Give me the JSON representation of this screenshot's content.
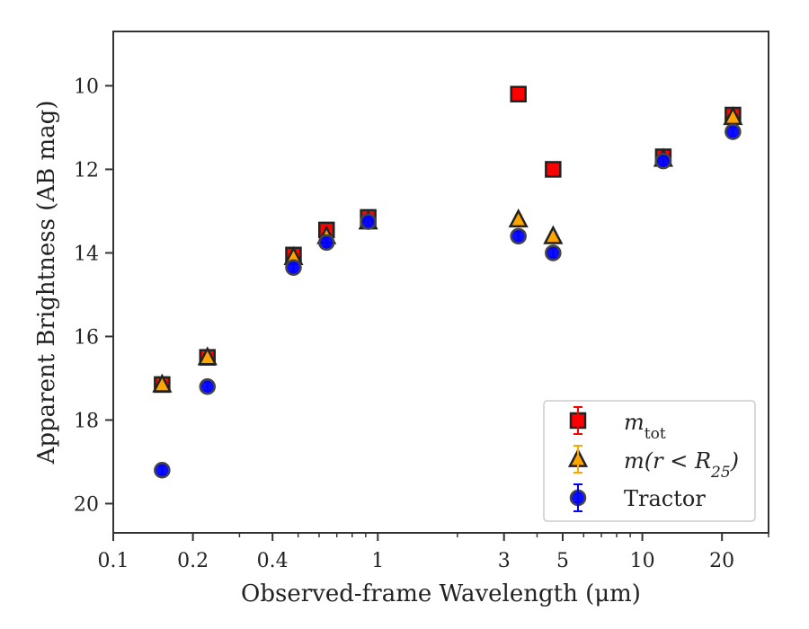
{
  "chart_data": {
    "type": "scatter",
    "xlabel": "Observed-frame Wavelength (μm)",
    "ylabel": "Apparent Brightness (AB mag)",
    "x_scale": "log",
    "xlim": [
      0.1,
      30
    ],
    "ylim": [
      20.7,
      8.7
    ],
    "y_inverted": true,
    "x_ticks": [
      0.1,
      0.2,
      0.4,
      1,
      3,
      5,
      10,
      20
    ],
    "x_tick_labels": [
      "0.1",
      "0.2",
      "0.4",
      "1",
      "3",
      "5",
      "10",
      "20"
    ],
    "y_ticks": [
      10,
      12,
      14,
      16,
      18,
      20
    ],
    "y_tick_labels": [
      "10",
      "12",
      "14",
      "16",
      "18",
      "20"
    ],
    "grid": false,
    "legend_position": "bottom-right",
    "series": [
      {
        "name": "m_tot",
        "legend_label": {
          "m": "m",
          "sub": "tot"
        },
        "marker": "square",
        "color": "#ff0000",
        "error_color": "#ff0000",
        "points": [
          {
            "x": 0.153,
            "y": 17.15
          },
          {
            "x": 0.227,
            "y": 16.5
          },
          {
            "x": 0.48,
            "y": 14.05
          },
          {
            "x": 0.64,
            "y": 13.45
          },
          {
            "x": 0.92,
            "y": 13.15
          },
          {
            "x": 3.4,
            "y": 10.2
          },
          {
            "x": 4.6,
            "y": 12.0
          },
          {
            "x": 12.0,
            "y": 11.7
          },
          {
            "x": 22.0,
            "y": 10.7
          }
        ]
      },
      {
        "name": "m(r < R_25)",
        "legend_label": {
          "pre": "m(r < R",
          "sub": "25",
          "post": ")"
        },
        "marker": "triangle",
        "color": "#ffa500",
        "error_color": "#ffa500",
        "points": [
          {
            "x": 0.153,
            "y": 17.15
          },
          {
            "x": 0.227,
            "y": 16.5
          },
          {
            "x": 0.48,
            "y": 14.1
          },
          {
            "x": 0.64,
            "y": 13.6
          },
          {
            "x": 0.92,
            "y": 13.25
          },
          {
            "x": 3.4,
            "y": 13.2
          },
          {
            "x": 4.6,
            "y": 13.6
          },
          {
            "x": 12.0,
            "y": 11.75
          },
          {
            "x": 22.0,
            "y": 10.75
          }
        ]
      },
      {
        "name": "Tractor",
        "legend_label": {
          "text": "Tractor"
        },
        "marker": "circle",
        "color": "#0000ff",
        "error_color": "#0000ff",
        "points": [
          {
            "x": 0.153,
            "y": 19.2
          },
          {
            "x": 0.227,
            "y": 17.2
          },
          {
            "x": 0.48,
            "y": 14.35
          },
          {
            "x": 0.64,
            "y": 13.75
          },
          {
            "x": 0.92,
            "y": 13.25
          },
          {
            "x": 3.4,
            "y": 13.6
          },
          {
            "x": 4.6,
            "y": 14.0
          },
          {
            "x": 12.0,
            "y": 11.8
          },
          {
            "x": 22.0,
            "y": 11.1
          }
        ]
      }
    ]
  }
}
